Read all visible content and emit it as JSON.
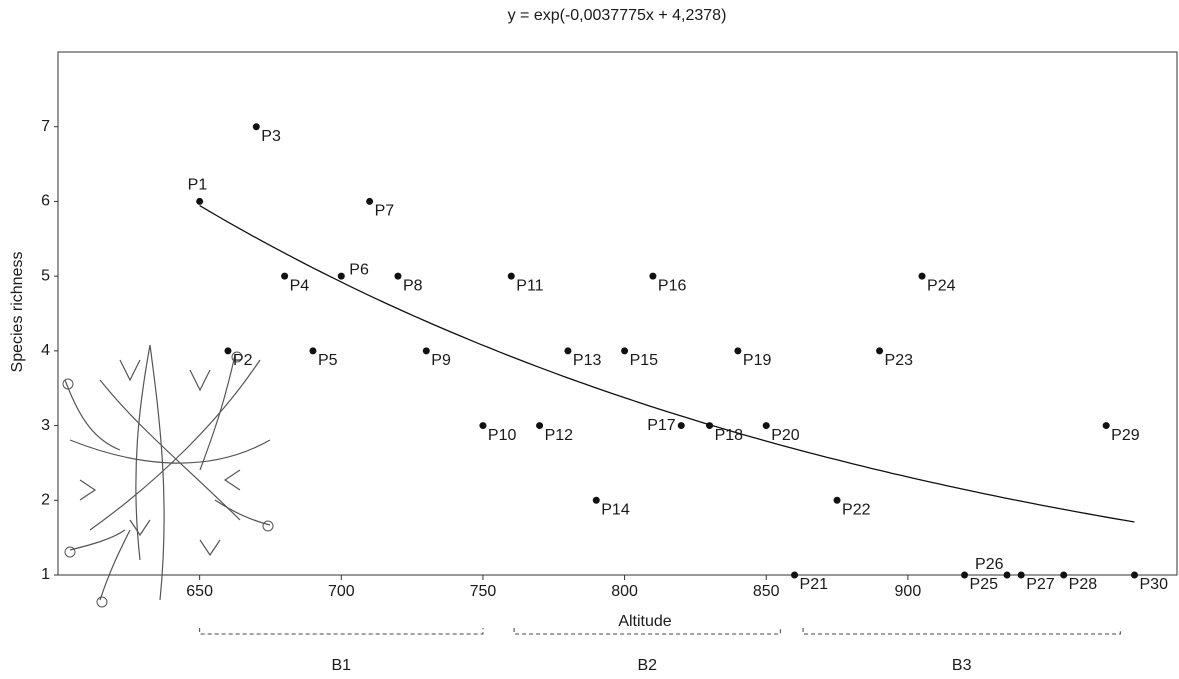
{
  "chart_data": {
    "type": "scatter",
    "title": "y = exp(-0,0037775x + 4,2378)",
    "x_label": "Altitude",
    "y_label": "Species richness",
    "labels": [
      "P1",
      "P2",
      "P3",
      "P4",
      "P5",
      "P6",
      "P7",
      "P8",
      "P9",
      "P10",
      "P11",
      "P12",
      "P13",
      "P14",
      "P15",
      "P16",
      "P17",
      "P18",
      "P19",
      "P20",
      "P21",
      "P22",
      "P23",
      "P24",
      "P25",
      "P26",
      "P27",
      "P28",
      "P29",
      "P30"
    ],
    "x": [
      650,
      660,
      670,
      680,
      690,
      700,
      710,
      720,
      730,
      750,
      760,
      770,
      780,
      790,
      800,
      810,
      820,
      830,
      840,
      850,
      860,
      875,
      890,
      905,
      920,
      935,
      940,
      955,
      970,
      980
    ],
    "values": [
      6,
      4,
      7,
      5,
      4,
      5,
      6,
      5,
      4,
      3,
      5,
      3,
      4,
      2,
      4,
      5,
      3,
      3,
      4,
      3,
      1,
      2,
      4,
      5,
      1,
      1,
      1,
      1,
      3,
      1
    ],
    "color": "#111111",
    "fit": {
      "slope": -0.0037775,
      "intercept": 4.2378
    },
    "groups": [
      {
        "label": "B1",
        "range": [
          650,
          750
        ]
      },
      {
        "label": "B2",
        "range": [
          761,
          855
        ]
      },
      {
        "label": "B3",
        "range": [
          863,
          975
        ]
      }
    ],
    "xlim": [
      600,
      995
    ],
    "ylim": [
      1,
      8
    ],
    "xticks": [
      650,
      700,
      750,
      800,
      850,
      900
    ],
    "yticks": [
      1,
      2,
      3,
      4,
      5,
      6,
      7
    ]
  }
}
